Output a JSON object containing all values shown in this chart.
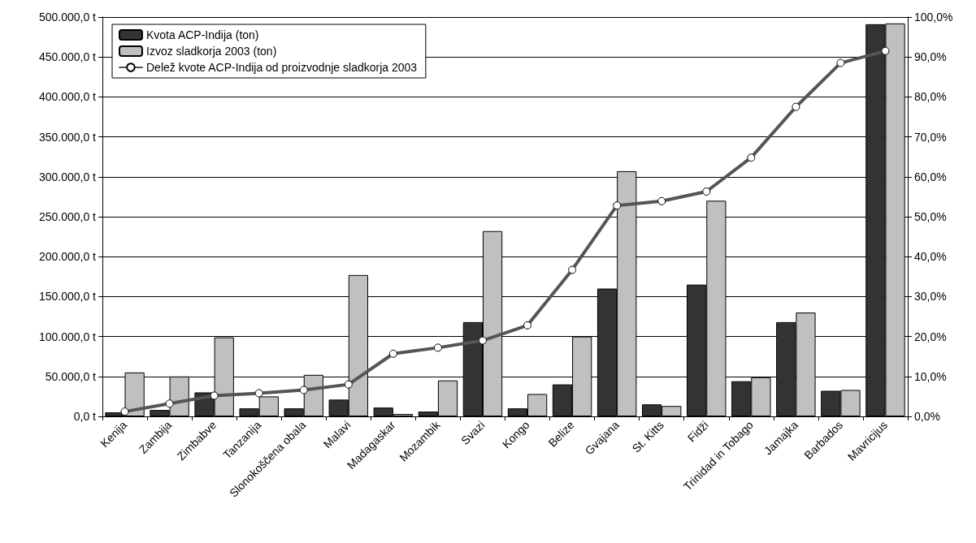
{
  "chart_data": {
    "type": "bar",
    "categories": [
      "Kenija",
      "Zambija",
      "Zimbabve",
      "Tanzanija",
      "Slonokoščena obala",
      "Malavi",
      "Madagaskar",
      "Mozambik",
      "Svazi",
      "Kongo",
      "Belize",
      "Gvajana",
      "St. Kitts",
      "Fidži",
      "Trinidad in Tobago",
      "Jamajka",
      "Barbados",
      "Mavricijus"
    ],
    "series": [
      {
        "name": "Kvota ACP-Indija (ton)",
        "color": "#333333",
        "values": [
          5000,
          8000,
          30000,
          10000,
          10000,
          21000,
          11000,
          6000,
          118000,
          10000,
          40000,
          160000,
          15000,
          165000,
          44000,
          118000,
          32000,
          491000
        ]
      },
      {
        "name": "Izvoz sladkorja 2003 (ton)",
        "color": "#c0c0c0",
        "values": [
          55000,
          50000,
          99000,
          25000,
          52000,
          177000,
          3000,
          45000,
          232000,
          28000,
          100000,
          307000,
          13000,
          270000,
          49000,
          130000,
          33000,
          492000
        ]
      },
      {
        "name": "Delež kvote ACP-Indija od proizvodnje sladkorja 2003",
        "type": "line",
        "axis": "y2",
        "color": "#555555",
        "marker": "circle",
        "values": [
          1.2,
          3.2,
          5.2,
          5.8,
          6.6,
          8.0,
          15.7,
          17.2,
          19.0,
          22.8,
          36.7,
          52.8,
          53.9,
          56.3,
          64.8,
          77.5,
          88.5,
          91.5
        ]
      }
    ],
    "ylim": [
      0,
      500000
    ],
    "yticks": [
      {
        "value": 0,
        "label": "0,0 t"
      },
      {
        "value": 50000,
        "label": "50.000,0 t"
      },
      {
        "value": 100000,
        "label": "100.000,0 t"
      },
      {
        "value": 150000,
        "label": "150.000,0 t"
      },
      {
        "value": 200000,
        "label": "200.000,0 t"
      },
      {
        "value": 250000,
        "label": "250.000,0 t"
      },
      {
        "value": 300000,
        "label": "300.000,0 t"
      },
      {
        "value": 350000,
        "label": "350.000,0 t"
      },
      {
        "value": 400000,
        "label": "400.000,0 t"
      },
      {
        "value": 450000,
        "label": "450.000,0 t"
      },
      {
        "value": 500000,
        "label": "500.000,0 t"
      }
    ],
    "y2lim": [
      0,
      100
    ],
    "y2ticks": [
      {
        "value": 0,
        "label": "0,0%"
      },
      {
        "value": 10,
        "label": "10,0%"
      },
      {
        "value": 20,
        "label": "20,0%"
      },
      {
        "value": 30,
        "label": "30,0%"
      },
      {
        "value": 40,
        "label": "40,0%"
      },
      {
        "value": 50,
        "label": "50,0%"
      },
      {
        "value": 60,
        "label": "60,0%"
      },
      {
        "value": 70,
        "label": "70,0%"
      },
      {
        "value": 80,
        "label": "80,0%"
      },
      {
        "value": 90,
        "label": "90,0%"
      },
      {
        "value": 100,
        "label": "100,0%"
      }
    ],
    "grid": "y",
    "legend": "top left"
  }
}
